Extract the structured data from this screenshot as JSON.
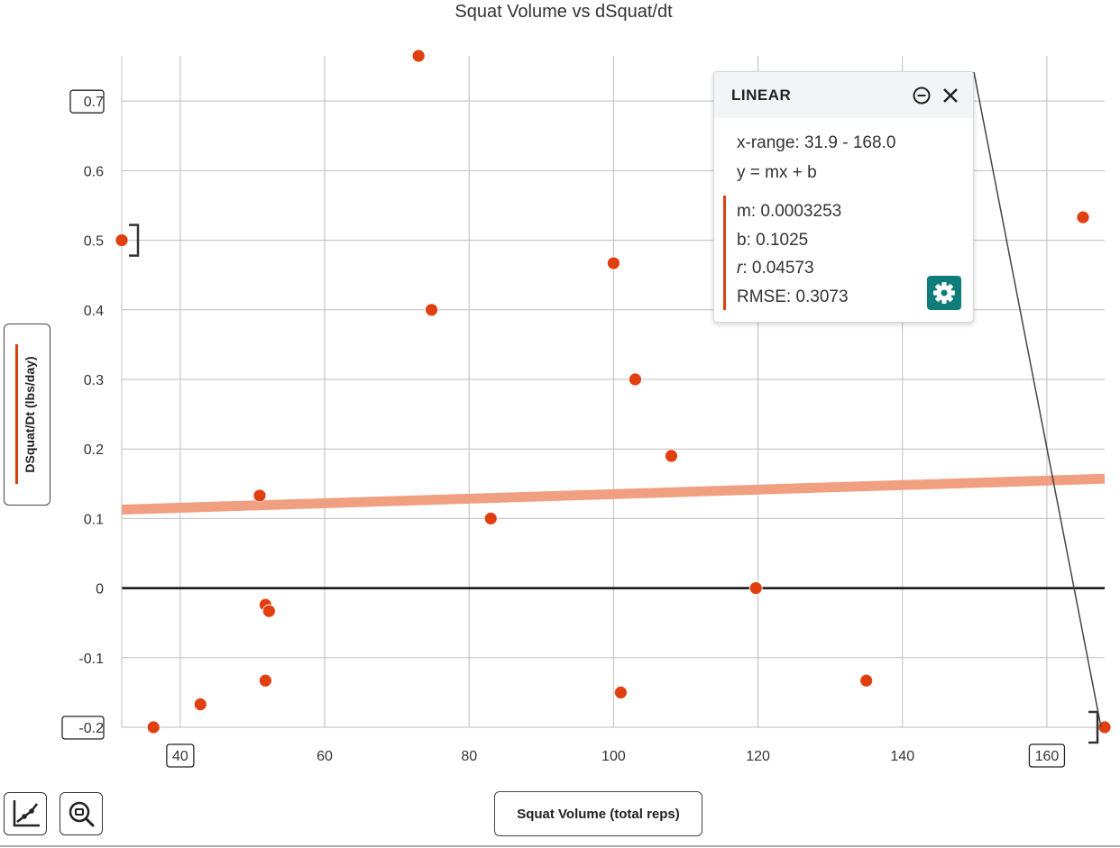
{
  "chart_data": {
    "type": "scatter",
    "title": "Squat Volume vs dSquat/dt",
    "xlabel": "Squat Volume (total reps)",
    "ylabel": "DSquat/Dt (lbs/day)",
    "xlim": [
      31.9,
      168.0
    ],
    "ylim": [
      -0.2,
      0.765
    ],
    "x_ticks": [
      40,
      60,
      80,
      100,
      120,
      140,
      160
    ],
    "y_ticks": [
      -0.2,
      -0.1,
      0,
      0.1,
      0.2,
      0.3,
      0.4,
      0.5,
      0.6,
      0.7
    ],
    "boxed_ticks": {
      "x": [
        40,
        160
      ],
      "y": [
        0.7,
        -0.2
      ]
    },
    "grid": true,
    "points": [
      {
        "x": 31.9,
        "y": 0.5
      },
      {
        "x": 36.3,
        "y": -0.2
      },
      {
        "x": 42.8,
        "y": -0.167
      },
      {
        "x": 51.0,
        "y": 0.133
      },
      {
        "x": 51.8,
        "y": -0.133
      },
      {
        "x": 51.8,
        "y": -0.024
      },
      {
        "x": 52.3,
        "y": -0.033
      },
      {
        "x": 73.0,
        "y": 0.765
      },
      {
        "x": 74.8,
        "y": 0.4
      },
      {
        "x": 83.0,
        "y": 0.1
      },
      {
        "x": 100.0,
        "y": 0.467
      },
      {
        "x": 101.0,
        "y": -0.15
      },
      {
        "x": 103.0,
        "y": 0.3
      },
      {
        "x": 108.0,
        "y": 0.19
      },
      {
        "x": 119.7,
        "y": 0.0
      },
      {
        "x": 135.0,
        "y": -0.133
      },
      {
        "x": 165.0,
        "y": 0.533
      },
      {
        "x": 168.0,
        "y": -0.2
      }
    ],
    "fit": {
      "type": "linear",
      "m": 0.0003253,
      "b": 0.1025
    },
    "colors": {
      "points": "#e0400f",
      "fit": "#f0a080",
      "grid": "#bdbdbd",
      "zero_line": "#111111"
    }
  },
  "regression_panel": {
    "title": "LINEAR",
    "x_range": "x-range: 31.9 - 168.0",
    "equation": "y = mx + b",
    "m": "m: 0.0003253",
    "b": "b: 0.1025",
    "r_label": "r",
    "r_value": ": 0.04573",
    "rmse": "RMSE: 0.3073",
    "icons": [
      "minus-circle-icon",
      "close-icon",
      "gear-icon"
    ]
  },
  "toolbar": {
    "icons": [
      "line-chart-icon",
      "zoom-fit-icon"
    ]
  }
}
